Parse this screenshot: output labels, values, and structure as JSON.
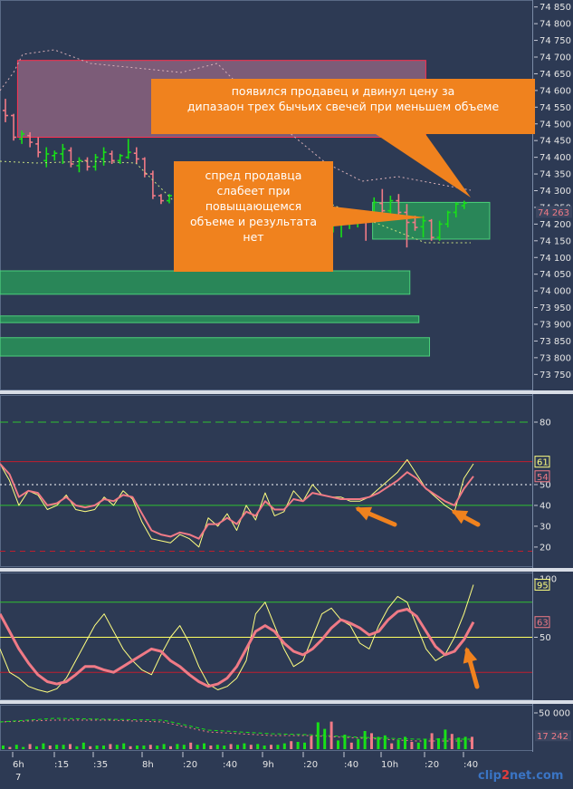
{
  "callouts": {
    "top": {
      "line1": "появился продавец и двинул цену за",
      "line2": "дипазаон трех бычьих свечей при меньшем объеме"
    },
    "left": {
      "line1": "спред продавца",
      "line2": "слабеет при",
      "line3": "повыщающемся",
      "line4": "объеме и результата",
      "line5": "нет"
    }
  },
  "watermark": {
    "pre": "clip",
    "n": "2",
    "post": "net.com"
  },
  "colors": {
    "background": "#2d3a54",
    "bull": "#18e018",
    "bear": "#f07a86",
    "zone_red": "#c0607a",
    "zone_green": "#2f9e62",
    "callout": "#f0821e",
    "osc_fast": "#ffff80",
    "osc_slow": "#f07a86",
    "level_green": "#30c030",
    "level_red": "#c01e2e"
  },
  "chart_data": [
    {
      "type": "candlestick",
      "panel": "price",
      "ylim": [
        73740,
        74860
      ],
      "y_ticks": [
        "74 850",
        "74 800",
        "74 750",
        "74 700",
        "74 650",
        "74 600",
        "74 550",
        "74 500",
        "74 450",
        "74 400",
        "74 350",
        "74 300",
        "74 250",
        "74 200",
        "74 150",
        "74 100",
        "74 050",
        "74 000",
        "73 950",
        "73 900",
        "73 850",
        "73 800",
        "73 750"
      ],
      "last_price_label": "74 263",
      "candles": [
        {
          "i": 0,
          "o": 74540,
          "h": 74575,
          "l": 74505,
          "c": 74525
        },
        {
          "i": 1,
          "o": 74525,
          "h": 74530,
          "l": 74450,
          "c": 74460
        },
        {
          "i": 2,
          "o": 74455,
          "h": 74480,
          "l": 74440,
          "c": 74470
        },
        {
          "i": 3,
          "o": 74465,
          "h": 74475,
          "l": 74430,
          "c": 74445
        },
        {
          "i": 4,
          "o": 74440,
          "h": 74460,
          "l": 74400,
          "c": 74415
        },
        {
          "i": 5,
          "o": 74390,
          "h": 74430,
          "l": 74370,
          "c": 74410
        },
        {
          "i": 6,
          "o": 74405,
          "h": 74420,
          "l": 74390,
          "c": 74412
        },
        {
          "i": 7,
          "o": 74410,
          "h": 74440,
          "l": 74380,
          "c": 74425
        },
        {
          "i": 8,
          "o": 74420,
          "h": 74430,
          "l": 74370,
          "c": 74380
        },
        {
          "i": 9,
          "o": 74375,
          "h": 74400,
          "l": 74355,
          "c": 74390
        },
        {
          "i": 10,
          "o": 74390,
          "h": 74400,
          "l": 74360,
          "c": 74372
        },
        {
          "i": 11,
          "o": 74372,
          "h": 74410,
          "l": 74360,
          "c": 74400
        },
        {
          "i": 12,
          "o": 74395,
          "h": 74430,
          "l": 74375,
          "c": 74415
        },
        {
          "i": 13,
          "o": 74410,
          "h": 74420,
          "l": 74380,
          "c": 74390
        },
        {
          "i": 14,
          "o": 74390,
          "h": 74410,
          "l": 74380,
          "c": 74405
        },
        {
          "i": 15,
          "o": 74400,
          "h": 74455,
          "l": 74395,
          "c": 74415
        },
        {
          "i": 16,
          "o": 74412,
          "h": 74430,
          "l": 74380,
          "c": 74395
        },
        {
          "i": 17,
          "o": 74395,
          "h": 74400,
          "l": 74340,
          "c": 74350
        },
        {
          "i": 18,
          "o": 74350,
          "h": 74360,
          "l": 74275,
          "c": 74285
        },
        {
          "i": 19,
          "o": 74285,
          "h": 74290,
          "l": 74260,
          "c": 74270
        },
        {
          "i": 20,
          "o": 74270,
          "h": 74290,
          "l": 74262,
          "c": 74285
        },
        {
          "i": 21,
          "o": 74285,
          "h": 74290,
          "l": 74265,
          "c": 74270
        },
        {
          "i": 22,
          "o": 74270,
          "h": 74285,
          "l": 74250,
          "c": 74260
        },
        {
          "i": 23,
          "o": 74280,
          "h": 74290,
          "l": 74265,
          "c": 74270
        },
        {
          "i": 40,
          "o": 74195,
          "h": 74215,
          "l": 74175,
          "c": 74205
        },
        {
          "i": 41,
          "o": 74205,
          "h": 74220,
          "l": 74160,
          "c": 74215
        },
        {
          "i": 42,
          "o": 74210,
          "h": 74220,
          "l": 74185,
          "c": 74212
        },
        {
          "i": 43,
          "o": 74212,
          "h": 74240,
          "l": 74190,
          "c": 74225
        },
        {
          "i": 44,
          "o": 74222,
          "h": 74235,
          "l": 74150,
          "c": 74215
        },
        {
          "i": 45,
          "o": 74215,
          "h": 74280,
          "l": 74205,
          "c": 74265
        },
        {
          "i": 46,
          "o": 74262,
          "h": 74305,
          "l": 74230,
          "c": 74240
        },
        {
          "i": 47,
          "o": 74240,
          "h": 74285,
          "l": 74225,
          "c": 74270
        },
        {
          "i": 48,
          "o": 74270,
          "h": 74290,
          "l": 74225,
          "c": 74235
        },
        {
          "i": 49,
          "o": 74235,
          "h": 74260,
          "l": 74130,
          "c": 74205
        },
        {
          "i": 50,
          "o": 74205,
          "h": 74225,
          "l": 74180,
          "c": 74190
        },
        {
          "i": 51,
          "o": 74192,
          "h": 74225,
          "l": 74160,
          "c": 74210
        },
        {
          "i": 52,
          "o": 74210,
          "h": 74215,
          "l": 74150,
          "c": 74160
        },
        {
          "i": 53,
          "o": 74160,
          "h": 74210,
          "l": 74150,
          "c": 74200
        },
        {
          "i": 54,
          "o": 74200,
          "h": 74240,
          "l": 74190,
          "c": 74235
        },
        {
          "i": 55,
          "o": 74235,
          "h": 74265,
          "l": 74220,
          "c": 74260
        },
        {
          "i": 56,
          "o": 74255,
          "h": 74270,
          "l": 74245,
          "c": 74263
        }
      ],
      "zones": [
        {
          "kind": "red",
          "x0": 0.033,
          "x1": 0.8,
          "y0": 74460,
          "y1": 74690
        },
        {
          "kind": "green",
          "x0": 0.7,
          "x1": 0.92,
          "y0": 74155,
          "y1": 74265
        },
        {
          "kind": "green",
          "x0": 0.0,
          "x1": 0.77,
          "y0": 73990,
          "y1": 74060
        },
        {
          "kind": "green",
          "x0": 0.0,
          "x1": 0.787,
          "y0": 73905,
          "y1": 73925
        },
        {
          "kind": "green",
          "x0": 0.0,
          "x1": 0.807,
          "y0": 73805,
          "y1": 73860
        }
      ]
    },
    {
      "type": "line",
      "panel": "oscillator-1",
      "ylim": [
        13,
        90
      ],
      "y_ticks": [
        80,
        50,
        40,
        30,
        20
      ],
      "levels": [
        {
          "y": 80,
          "style": "green-dash"
        },
        {
          "y": 61,
          "style": "red"
        },
        {
          "y": 50,
          "style": "white-dot"
        },
        {
          "y": 40,
          "style": "green"
        },
        {
          "y": 18,
          "style": "red-dash"
        }
      ],
      "markers": [
        {
          "value": "61"
        },
        {
          "value": "54"
        }
      ],
      "series": [
        {
          "color": "fast",
          "values": [
            60,
            52,
            40,
            47,
            45,
            38,
            40,
            45,
            38,
            37,
            38,
            44,
            40,
            47,
            43,
            32,
            24,
            23,
            22,
            26,
            24,
            20,
            34,
            30,
            36,
            28,
            40,
            33,
            46,
            35,
            37,
            47,
            42,
            50,
            45,
            44,
            44,
            42,
            42,
            44,
            48,
            52,
            56,
            62,
            55,
            48,
            44,
            40,
            37,
            53,
            60
          ]
        },
        {
          "color": "slow",
          "values": [
            60,
            55,
            44,
            47,
            46,
            40,
            41,
            44,
            40,
            39,
            40,
            43,
            42,
            45,
            44,
            36,
            28,
            26,
            25,
            27,
            26,
            24,
            31,
            31,
            34,
            31,
            37,
            35,
            42,
            38,
            38,
            43,
            42,
            46,
            45,
            44,
            43,
            43,
            43,
            44,
            46,
            49,
            52,
            56,
            53,
            48,
            45,
            42,
            40,
            48,
            54
          ]
        }
      ]
    },
    {
      "type": "line",
      "panel": "oscillator-2",
      "ylim": [
        0,
        100
      ],
      "y_ticks": [
        100,
        50
      ],
      "levels": [
        {
          "y": 80,
          "style": "green"
        },
        {
          "y": 50,
          "style": "yellow"
        },
        {
          "y": 20,
          "style": "red"
        }
      ],
      "markers": [
        {
          "value": "95"
        },
        {
          "value": "63"
        }
      ],
      "series": [
        {
          "color": "fast",
          "values": [
            40,
            20,
            15,
            8,
            5,
            3,
            6,
            15,
            30,
            45,
            60,
            70,
            55,
            40,
            30,
            22,
            18,
            35,
            50,
            60,
            45,
            25,
            10,
            5,
            8,
            15,
            30,
            70,
            80,
            60,
            40,
            25,
            30,
            50,
            70,
            75,
            65,
            60,
            45,
            40,
            60,
            75,
            85,
            80,
            60,
            40,
            30,
            35,
            50,
            70,
            95
          ]
        },
        {
          "color": "slow",
          "values": [
            70,
            55,
            40,
            28,
            18,
            12,
            10,
            12,
            18,
            25,
            25,
            22,
            20,
            25,
            30,
            35,
            40,
            38,
            30,
            25,
            18,
            12,
            8,
            10,
            15,
            25,
            40,
            55,
            60,
            55,
            45,
            38,
            35,
            40,
            48,
            58,
            65,
            62,
            58,
            52,
            55,
            65,
            72,
            74,
            68,
            55,
            42,
            35,
            38,
            48,
            63
          ]
        }
      ]
    },
    {
      "type": "bar",
      "panel": "volume",
      "ylim": [
        0,
        60000
      ],
      "y_ticks": [
        "50 000"
      ],
      "last_volume_label": "17 242",
      "values": [
        5000,
        3000,
        6000,
        3000,
        7000,
        4000,
        8000,
        5000,
        6000,
        6000,
        7000,
        4000,
        9000,
        4000,
        5000,
        5000,
        7000,
        6000,
        8000,
        4000,
        5000,
        5000,
        6000,
        5000,
        7000,
        4000,
        7000,
        6000,
        9000,
        6000,
        8000,
        5000,
        6000,
        5000,
        7000,
        6000,
        8000,
        6000,
        7000,
        5000,
        6000,
        6000,
        8000,
        11000,
        10000,
        9000,
        18000,
        37000,
        28000,
        38000,
        12000,
        20000,
        9000,
        14000,
        25000,
        22000,
        17000,
        19000,
        8000,
        13000,
        17000,
        10000,
        9000,
        14000,
        22000,
        15000,
        27000,
        21000,
        16000,
        17000,
        17000
      ],
      "x_labels": [
        "6h",
        "7",
        ":15",
        ":35",
        "8h",
        ":20",
        ":40",
        "9h",
        ":20",
        ":40",
        "10h",
        ":20",
        ":40"
      ]
    }
  ]
}
